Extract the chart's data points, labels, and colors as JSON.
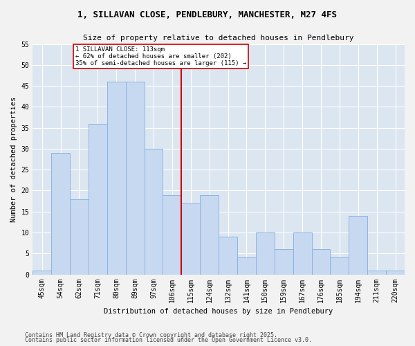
{
  "title1": "1, SILLAVAN CLOSE, PENDLEBURY, MANCHESTER, M27 4FS",
  "title2": "Size of property relative to detached houses in Pendlebury",
  "xlabel": "Distribution of detached houses by size in Pendlebury",
  "ylabel": "Number of detached properties",
  "categories": [
    "45sqm",
    "54sqm",
    "62sqm",
    "71sqm",
    "80sqm",
    "89sqm",
    "97sqm",
    "106sqm",
    "115sqm",
    "124sqm",
    "132sqm",
    "141sqm",
    "150sqm",
    "159sqm",
    "167sqm",
    "176sqm",
    "185sqm",
    "194sqm",
    "211sqm",
    "220sqm"
  ],
  "values": [
    1,
    29,
    18,
    36,
    46,
    46,
    30,
    19,
    17,
    19,
    9,
    4,
    10,
    6,
    10,
    6,
    4,
    14,
    1,
    1
  ],
  "bar_color": "#c6d9f1",
  "bar_edge_color": "#8db3e2",
  "vline_color": "#cc0000",
  "annotation_text": "1 SILLAVAN CLOSE: 113sqm\n← 62% of detached houses are smaller (202)\n35% of semi-detached houses are larger (115) →",
  "annotation_box_facecolor": "#ffffff",
  "annotation_box_edgecolor": "#cc0000",
  "ylim": [
    0,
    55
  ],
  "yticks": [
    0,
    5,
    10,
    15,
    20,
    25,
    30,
    35,
    40,
    45,
    50,
    55
  ],
  "footer1": "Contains HM Land Registry data © Crown copyright and database right 2025.",
  "footer2": "Contains public sector information licensed under the Open Government Licence v3.0.",
  "fig_facecolor": "#f2f2f2",
  "ax_facecolor": "#dce6f1",
  "grid_color": "#ffffff",
  "title_fontsize": 9,
  "subtitle_fontsize": 8,
  "axis_label_fontsize": 7.5,
  "tick_fontsize": 7,
  "footer_fontsize": 6,
  "bar_width": 1.0
}
